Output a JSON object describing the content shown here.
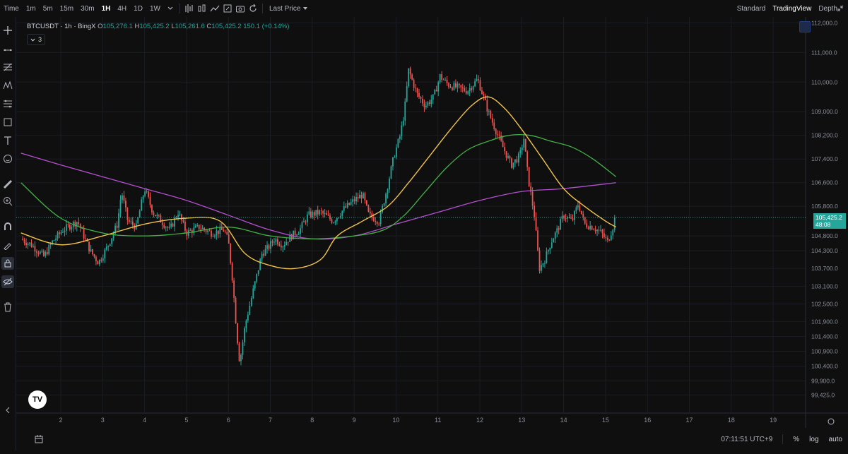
{
  "toolbar": {
    "timeframes": [
      "Time",
      "1m",
      "5m",
      "15m",
      "30m",
      "1H",
      "4H",
      "1D",
      "1W"
    ],
    "active_timeframe": "1H",
    "price_type": "Last Price",
    "views": [
      "Standard",
      "TradingView",
      "Depth"
    ],
    "active_view": "TradingView"
  },
  "legend": {
    "symbol": "BTCUSDT · 1h · BingX",
    "open_label": "O",
    "open": "105,276.1",
    "high_label": "H",
    "high": "105,425.2",
    "low_label": "L",
    "low": "105,261.6",
    "close_label": "C",
    "close": "105,425.2",
    "change": "150.1 (+0.14%)",
    "indicator_count": "3"
  },
  "last_price": {
    "price": "105,425.2",
    "countdown": "48:08"
  },
  "footer": {
    "time": "07:11:51 UTC+9",
    "percent_label": "%",
    "log_label": "log",
    "auto_label": "auto"
  },
  "colors": {
    "up": "#26a69a",
    "down": "#ef5350",
    "ma_fast": "#f0c24c",
    "ma_mid": "#43b047",
    "ma_slow": "#b54fd0",
    "bg": "#0f0f0f"
  },
  "chart_data": {
    "type": "candlestick",
    "symbol": "BTCUSDT",
    "interval": "1h",
    "exchange": "BingX",
    "y_ticks": [
      "112,000.0",
      "111,000.0",
      "110,000.0",
      "109,000.0",
      "108,200.0",
      "107,400.0",
      "106,600.0",
      "105,800.0",
      "104,800.0",
      "104,300.0",
      "103,700.0",
      "103,100.0",
      "102,500.0",
      "101,900.0",
      "101,400.0",
      "100,900.0",
      "100,400.0",
      "99,900.0",
      "99,425.0"
    ],
    "x_ticks": [
      "2",
      "3",
      "4",
      "5",
      "6",
      "7",
      "8",
      "9",
      "10",
      "11",
      "12",
      "13",
      "14",
      "15",
      "16",
      "17",
      "18",
      "19"
    ],
    "price_path": [
      {
        "day": 1.05,
        "price": 104700
      },
      {
        "day": 1.3,
        "price": 104500
      },
      {
        "day": 1.6,
        "price": 104100
      },
      {
        "day": 1.8,
        "price": 104600
      },
      {
        "day": 2.05,
        "price": 105000
      },
      {
        "day": 2.4,
        "price": 105300
      },
      {
        "day": 2.7,
        "price": 104300
      },
      {
        "day": 2.9,
        "price": 103900
      },
      {
        "day": 3.1,
        "price": 104400
      },
      {
        "day": 3.35,
        "price": 105200
      },
      {
        "day": 3.45,
        "price": 106300
      },
      {
        "day": 3.6,
        "price": 105300
      },
      {
        "day": 3.8,
        "price": 105100
      },
      {
        "day": 4.0,
        "price": 106400
      },
      {
        "day": 4.2,
        "price": 105600
      },
      {
        "day": 4.4,
        "price": 105300
      },
      {
        "day": 4.6,
        "price": 105000
      },
      {
        "day": 4.8,
        "price": 105600
      },
      {
        "day": 5.0,
        "price": 104900
      },
      {
        "day": 5.3,
        "price": 105100
      },
      {
        "day": 5.6,
        "price": 104900
      },
      {
        "day": 5.9,
        "price": 105000
      },
      {
        "day": 6.0,
        "price": 104600
      },
      {
        "day": 6.1,
        "price": 103300
      },
      {
        "day": 6.2,
        "price": 101500
      },
      {
        "day": 6.27,
        "price": 100500
      },
      {
        "day": 6.4,
        "price": 101800
      },
      {
        "day": 6.6,
        "price": 103000
      },
      {
        "day": 6.8,
        "price": 104200
      },
      {
        "day": 6.95,
        "price": 104400
      },
      {
        "day": 7.1,
        "price": 104700
      },
      {
        "day": 7.3,
        "price": 104500
      },
      {
        "day": 7.5,
        "price": 104800
      },
      {
        "day": 7.7,
        "price": 105000
      },
      {
        "day": 7.9,
        "price": 105500
      },
      {
        "day": 8.2,
        "price": 105600
      },
      {
        "day": 8.5,
        "price": 105300
      },
      {
        "day": 8.75,
        "price": 105700
      },
      {
        "day": 9.0,
        "price": 106000
      },
      {
        "day": 9.2,
        "price": 106200
      },
      {
        "day": 9.35,
        "price": 105500
      },
      {
        "day": 9.6,
        "price": 105300
      },
      {
        "day": 9.8,
        "price": 106500
      },
      {
        "day": 9.95,
        "price": 107500
      },
      {
        "day": 10.1,
        "price": 108200
      },
      {
        "day": 10.2,
        "price": 109000
      },
      {
        "day": 10.3,
        "price": 110400
      },
      {
        "day": 10.5,
        "price": 109600
      },
      {
        "day": 10.7,
        "price": 109200
      },
      {
        "day": 10.9,
        "price": 109500
      },
      {
        "day": 11.05,
        "price": 110200
      },
      {
        "day": 11.25,
        "price": 109900
      },
      {
        "day": 11.5,
        "price": 109800
      },
      {
        "day": 11.7,
        "price": 109700
      },
      {
        "day": 11.95,
        "price": 110100
      },
      {
        "day": 12.2,
        "price": 109000
      },
      {
        "day": 12.4,
        "price": 108300
      },
      {
        "day": 12.55,
        "price": 107800
      },
      {
        "day": 12.75,
        "price": 107200
      },
      {
        "day": 12.95,
        "price": 107500
      },
      {
        "day": 13.05,
        "price": 108100
      },
      {
        "day": 13.15,
        "price": 106800
      },
      {
        "day": 13.3,
        "price": 105500
      },
      {
        "day": 13.42,
        "price": 103700
      },
      {
        "day": 13.55,
        "price": 104000
      },
      {
        "day": 13.7,
        "price": 104600
      },
      {
        "day": 13.85,
        "price": 105000
      },
      {
        "day": 14.0,
        "price": 105500
      },
      {
        "day": 14.2,
        "price": 105300
      },
      {
        "day": 14.35,
        "price": 105900
      },
      {
        "day": 14.5,
        "price": 105200
      },
      {
        "day": 14.7,
        "price": 105100
      },
      {
        "day": 14.9,
        "price": 104900
      },
      {
        "day": 15.05,
        "price": 104600
      },
      {
        "day": 15.15,
        "price": 105000
      },
      {
        "day": 15.25,
        "price": 105425
      }
    ],
    "ma_fast": [
      {
        "day": 1.05,
        "price": 104900
      },
      {
        "day": 2.0,
        "price": 104500
      },
      {
        "day": 3.0,
        "price": 104800
      },
      {
        "day": 4.0,
        "price": 105200
      },
      {
        "day": 5.0,
        "price": 105400
      },
      {
        "day": 5.8,
        "price": 105300
      },
      {
        "day": 6.4,
        "price": 104200
      },
      {
        "day": 7.0,
        "price": 103800
      },
      {
        "day": 7.6,
        "price": 103700
      },
      {
        "day": 8.2,
        "price": 104000
      },
      {
        "day": 8.6,
        "price": 104800
      },
      {
        "day": 9.2,
        "price": 105300
      },
      {
        "day": 9.8,
        "price": 105800
      },
      {
        "day": 10.3,
        "price": 106600
      },
      {
        "day": 10.8,
        "price": 107500
      },
      {
        "day": 11.3,
        "price": 108400
      },
      {
        "day": 11.8,
        "price": 109200
      },
      {
        "day": 12.2,
        "price": 109500
      },
      {
        "day": 12.6,
        "price": 109100
      },
      {
        "day": 13.0,
        "price": 108400
      },
      {
        "day": 13.5,
        "price": 107400
      },
      {
        "day": 14.0,
        "price": 106400
      },
      {
        "day": 14.5,
        "price": 105800
      },
      {
        "day": 15.0,
        "price": 105300
      },
      {
        "day": 15.25,
        "price": 105100
      }
    ],
    "ma_mid": [
      {
        "day": 1.05,
        "price": 106600
      },
      {
        "day": 2.0,
        "price": 105400
      },
      {
        "day": 3.0,
        "price": 104900
      },
      {
        "day": 4.0,
        "price": 104800
      },
      {
        "day": 5.0,
        "price": 104900
      },
      {
        "day": 6.0,
        "price": 105100
      },
      {
        "day": 7.0,
        "price": 104800
      },
      {
        "day": 8.0,
        "price": 104700
      },
      {
        "day": 9.0,
        "price": 104800
      },
      {
        "day": 9.7,
        "price": 105000
      },
      {
        "day": 10.2,
        "price": 105500
      },
      {
        "day": 10.7,
        "price": 106300
      },
      {
        "day": 11.2,
        "price": 107100
      },
      {
        "day": 11.7,
        "price": 107700
      },
      {
        "day": 12.2,
        "price": 108000
      },
      {
        "day": 12.7,
        "price": 108200
      },
      {
        "day": 13.2,
        "price": 108200
      },
      {
        "day": 13.7,
        "price": 108000
      },
      {
        "day": 14.2,
        "price": 107800
      },
      {
        "day": 14.7,
        "price": 107400
      },
      {
        "day": 15.25,
        "price": 106800
      }
    ],
    "ma_slow": [
      {
        "day": 1.05,
        "price": 107600
      },
      {
        "day": 2.0,
        "price": 107200
      },
      {
        "day": 3.0,
        "price": 106800
      },
      {
        "day": 4.0,
        "price": 106400
      },
      {
        "day": 5.0,
        "price": 106000
      },
      {
        "day": 6.0,
        "price": 105500
      },
      {
        "day": 7.0,
        "price": 105000
      },
      {
        "day": 8.0,
        "price": 104700
      },
      {
        "day": 9.0,
        "price": 104800
      },
      {
        "day": 10.0,
        "price": 105200
      },
      {
        "day": 11.0,
        "price": 105600
      },
      {
        "day": 12.0,
        "price": 106000
      },
      {
        "day": 13.0,
        "price": 106300
      },
      {
        "day": 14.0,
        "price": 106400
      },
      {
        "day": 15.25,
        "price": 106600
      }
    ]
  }
}
